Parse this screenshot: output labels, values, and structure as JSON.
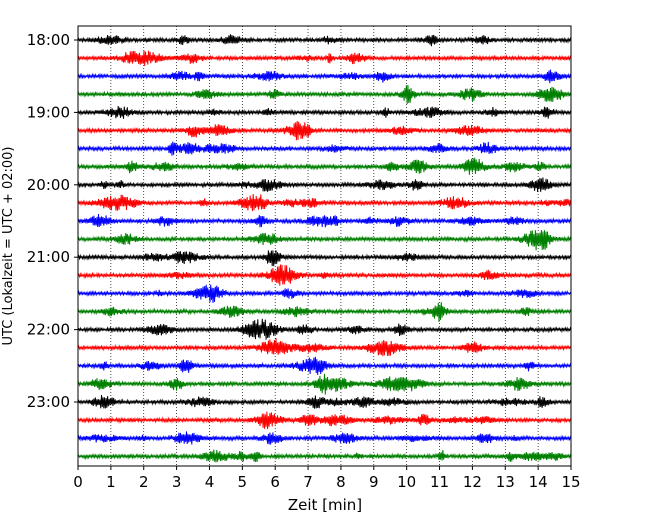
{
  "chart_data": {
    "type": "line",
    "title": "",
    "xlabel": "Zeit  [min]",
    "ylabel": "UTC (Lokalzeit = UTC + 02:00)",
    "xlim": [
      0,
      15
    ],
    "x_ticks": [
      "0",
      "1",
      "2",
      "3",
      "4",
      "5",
      "6",
      "7",
      "8",
      "9",
      "10",
      "11",
      "12",
      "13",
      "14",
      "15"
    ],
    "y_ticks": [
      "18:00",
      "19:00",
      "20:00",
      "21:00",
      "22:00",
      "23:00"
    ],
    "grid": "vertical dotted",
    "row_minutes": 15,
    "start_time": "18:00",
    "trace_colors": [
      "#000000",
      "#ff0000",
      "#0000ff",
      "#008000"
    ],
    "series": [
      {
        "start": "18:00"
      },
      {
        "start": "18:15"
      },
      {
        "start": "18:30"
      },
      {
        "start": "18:45"
      },
      {
        "start": "19:00"
      },
      {
        "start": "19:15"
      },
      {
        "start": "19:30"
      },
      {
        "start": "19:45"
      },
      {
        "start": "20:00"
      },
      {
        "start": "20:15"
      },
      {
        "start": "20:30"
      },
      {
        "start": "20:45"
      },
      {
        "start": "21:00"
      },
      {
        "start": "21:15"
      },
      {
        "start": "21:30"
      },
      {
        "start": "21:45"
      },
      {
        "start": "22:00"
      },
      {
        "start": "22:15"
      },
      {
        "start": "22:30"
      },
      {
        "start": "22:45"
      },
      {
        "start": "23:00"
      },
      {
        "start": "23:15"
      },
      {
        "start": "23:30"
      },
      {
        "start": "23:45"
      }
    ]
  }
}
